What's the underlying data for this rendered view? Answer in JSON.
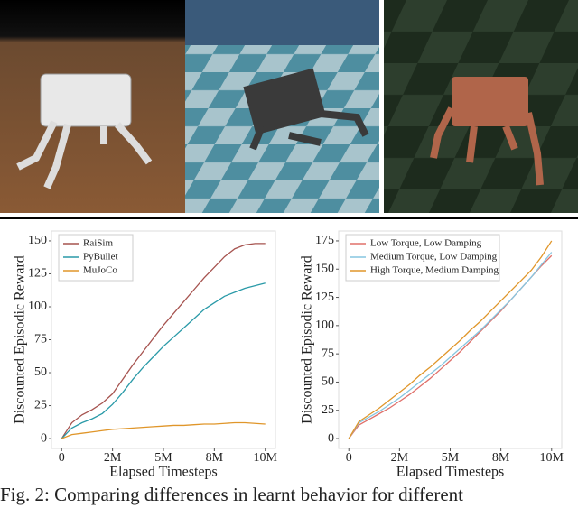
{
  "chart_data": [
    {
      "type": "line",
      "xlabel": "Elapsed Timesteps",
      "ylabel": "Discounted Episodic Reward",
      "x": [
        0,
        500000,
        1000000,
        1500000,
        2000000,
        2500000,
        3000000,
        3500000,
        4000000,
        4500000,
        5000000,
        5500000,
        6000000,
        6500000,
        7000000,
        7500000,
        8000000,
        8500000,
        9000000,
        9500000,
        10000000
      ],
      "series": [
        {
          "name": "RaiSim",
          "color": "#a6534f",
          "values": [
            0,
            12,
            18,
            22,
            27,
            34,
            45,
            56,
            66,
            76,
            86,
            95,
            104,
            113,
            122,
            130,
            138,
            144,
            147,
            148,
            148
          ]
        },
        {
          "name": "PyBullet",
          "color": "#2a9aa8",
          "values": [
            0,
            8,
            12,
            15,
            19,
            26,
            35,
            45,
            54,
            62,
            70,
            77,
            84,
            91,
            98,
            103,
            108,
            111,
            114,
            116,
            118
          ]
        },
        {
          "name": "MuJoCo",
          "color": "#e0962a",
          "values": [
            0,
            3,
            4,
            5,
            6,
            7,
            7.5,
            8,
            8.5,
            9,
            9.5,
            10,
            10,
            10.5,
            11,
            11,
            11.5,
            12,
            12,
            11.5,
            11
          ]
        }
      ],
      "xlim": [
        -500000,
        10500000
      ],
      "xticks": [
        0,
        {
          "value": 2500000,
          "label": "2M"
        },
        {
          "value": 5000000,
          "label": "5M"
        },
        {
          "value": 7500000,
          "label": "8M"
        },
        {
          "value": 10000000,
          "label": "10M"
        }
      ],
      "ylim": [
        -7.5,
        157.5
      ],
      "yticks": [
        0,
        25,
        50,
        75,
        100,
        125,
        150
      ],
      "legend": "upper left",
      "grid": false
    },
    {
      "type": "line",
      "xlabel": "Elapsed Timesteps",
      "ylabel": "Discounted Episodic Reward",
      "x": [
        0,
        500000,
        1000000,
        1500000,
        2000000,
        2500000,
        3000000,
        3500000,
        4000000,
        4500000,
        5000000,
        5500000,
        6000000,
        6500000,
        7000000,
        7500000,
        8000000,
        8500000,
        9000000,
        9500000,
        10000000
      ],
      "series": [
        {
          "name": "Low Torque, Low Damping",
          "color": "#e0706a",
          "values": [
            0,
            12,
            17,
            22,
            27,
            33,
            39,
            46,
            53,
            61,
            69,
            77,
            86,
            95,
            104,
            113,
            123,
            133,
            143,
            153,
            162
          ]
        },
        {
          "name": "Medium Torque, Low Damping",
          "color": "#86c6e0",
          "values": [
            0,
            14,
            19,
            24,
            30,
            36,
            43,
            50,
            57,
            64,
            72,
            80,
            88,
            96,
            105,
            114,
            123,
            133,
            143,
            154,
            165
          ]
        },
        {
          "name": "High Torque, Medium Damping",
          "color": "#e0962a",
          "values": [
            0,
            15,
            21,
            27,
            34,
            41,
            48,
            56,
            63,
            71,
            79,
            87,
            96,
            104,
            113,
            122,
            131,
            140,
            149,
            161,
            175
          ]
        }
      ],
      "xlim": [
        -500000,
        10500000
      ],
      "xticks": [
        0,
        {
          "value": 2500000,
          "label": "2M"
        },
        {
          "value": 5000000,
          "label": "5M"
        },
        {
          "value": 7500000,
          "label": "8M"
        },
        {
          "value": 10000000,
          "label": "10M"
        }
      ],
      "ylim": [
        -8.75,
        183.75
      ],
      "yticks": [
        0,
        25,
        50,
        75,
        100,
        125,
        150,
        175
      ],
      "legend": "upper left",
      "grid": false
    }
  ],
  "caption": "Fig. 2: Comparing differences in learnt behavior for different"
}
